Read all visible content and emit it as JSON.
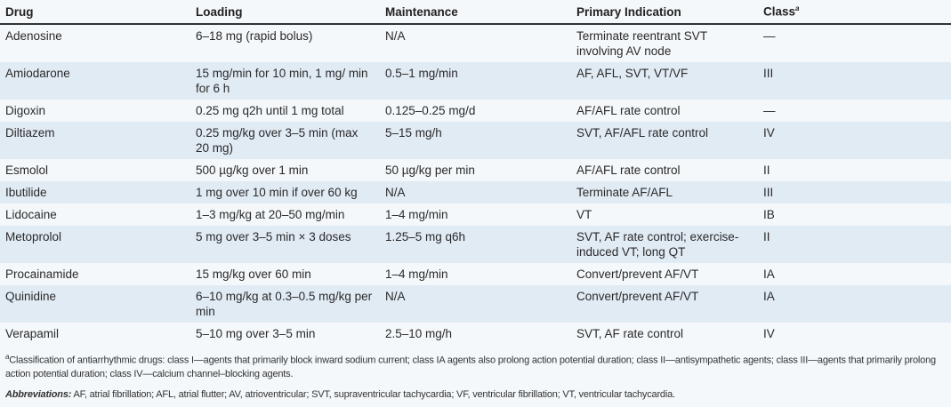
{
  "headers": {
    "drug": "Drug",
    "loading": "Loading",
    "maintenance": "Maintenance",
    "indication": "Primary Indication",
    "class": "Class",
    "class_sup": "a"
  },
  "rows": [
    {
      "drug": "Adenosine",
      "loading": "6–18 mg (rapid bolus)",
      "maintenance": "N/A",
      "indication": "Terminate reentrant SVT involving AV node",
      "class": "—"
    },
    {
      "drug": "Amiodarone",
      "loading": "15 mg/min for 10 min, 1 mg/ min for 6 h",
      "maintenance": "0.5–1 mg/min",
      "indication": "AF, AFL, SVT, VT/VF",
      "class": "III"
    },
    {
      "drug": "Digoxin",
      "loading": "0.25 mg q2h until 1 mg total",
      "maintenance": "0.125–0.25 mg/d",
      "indication": "AF/AFL rate control",
      "class": "—"
    },
    {
      "drug": "Diltiazem",
      "loading": "0.25 mg/kg over 3–5 min (max 20 mg)",
      "maintenance": "5–15 mg/h",
      "indication": "SVT, AF/AFL rate control",
      "class": "IV"
    },
    {
      "drug": "Esmolol",
      "loading": "500 µg/kg over 1 min",
      "maintenance": "50 µg/kg per min",
      "indication": "AF/AFL rate control",
      "class": "II"
    },
    {
      "drug": "Ibutilide",
      "loading": "1 mg over 10 min if over 60 kg",
      "maintenance": "N/A",
      "indication": "Terminate AF/AFL",
      "class": "III"
    },
    {
      "drug": "Lidocaine",
      "loading": "1–3 mg/kg at 20–50 mg/min",
      "maintenance": "1–4 mg/min",
      "indication": "VT",
      "class": "IB"
    },
    {
      "drug": "Metoprolol",
      "loading": "5 mg over 3–5 min × 3 doses",
      "maintenance": "1.25–5 mg q6h",
      "indication": "SVT, AF rate control; exercise-induced VT; long QT",
      "class": "II"
    },
    {
      "drug": "Procainamide",
      "loading": "15 mg/kg over 60 min",
      "maintenance": "1–4 mg/min",
      "indication": "Convert/prevent AF/VT",
      "class": "IA"
    },
    {
      "drug": "Quinidine",
      "loading": "6–10 mg/kg at 0.3–0.5 mg/kg per min",
      "maintenance": "N/A",
      "indication": "Convert/prevent AF/VT",
      "class": "IA"
    },
    {
      "drug": "Verapamil",
      "loading": "5–10 mg over 3–5 min",
      "maintenance": "2.5–10 mg/h",
      "indication": "SVT, AF rate control",
      "class": "IV"
    }
  ],
  "footnote": {
    "marker": "a",
    "text": "Classification of antiarrhythmic drugs: class I—agents that primarily block inward sodium current; class IA agents also prolong action potential duration; class II—antisympathetic agents; class III—agents that primarily prolong action potential duration; class IV—calcium channel–blocking agents."
  },
  "abbreviations": {
    "label": "Abbreviations:",
    "text": " AF, atrial fibrillation; AFL, atrial flutter; AV, atrioventricular; SVT, supraventricular tachycardia; VF, ventricular fibrillation; VT, ventricular tachycardia."
  }
}
